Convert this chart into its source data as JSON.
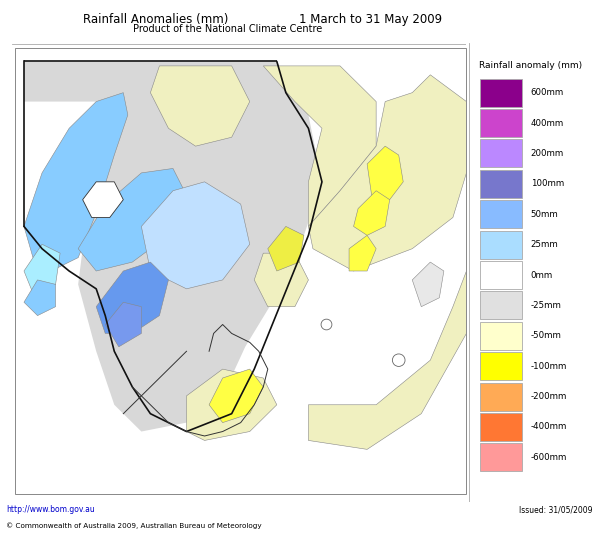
{
  "title_left": "Rainfall Anomalies (mm)",
  "title_right": "1 March to 31 May 2009",
  "subtitle": "Product of the National Climate Centre",
  "legend_title": "Rainfall anomaly (mm)",
  "legend_labels": [
    "600mm",
    "400mm",
    "200mm",
    "100mm",
    "50mm",
    "25mm",
    "0mm",
    "-25mm",
    "-50mm",
    "-100mm",
    "-200mm",
    "-400mm",
    "-600mm"
  ],
  "legend_colors": [
    "#8b008b",
    "#cc44cc",
    "#bb88ff",
    "#7777cc",
    "#88bbff",
    "#aaddff",
    "#ffffff",
    "#e0e0e0",
    "#ffffcc",
    "#ffff00",
    "#ffaa55",
    "#ff7733",
    "#ff9999",
    "#ff2222"
  ],
  "footer_left": "http://www.bom.gov.au",
  "footer_center": "© Commonwealth of Australia 2009, Australian Bureau of Meteorology",
  "footer_right": "Issued: 31/05/2009",
  "background_color": "#ffffff",
  "map_bg": "#ffffff",
  "map_border": "#999999",
  "outline_color": "#111111",
  "cb_colors": [
    "#8b008b",
    "#cc44cc",
    "#bb88ff",
    "#7777cc",
    "#88bbff",
    "#aaddff",
    "#ffffff",
    "#e0e0e0",
    "#ffffcc",
    "#ffff00",
    "#ffaa55",
    "#ff7733",
    "#ff9999",
    "#ff2222"
  ],
  "cb_labels": [
    "600mm",
    "400mm",
    "200mm",
    "100mm",
    "50mm",
    "25mm",
    "0mm",
    "-25mm",
    "-50mm",
    "-100mm",
    "-200mm",
    "-400mm",
    "-600mm"
  ]
}
